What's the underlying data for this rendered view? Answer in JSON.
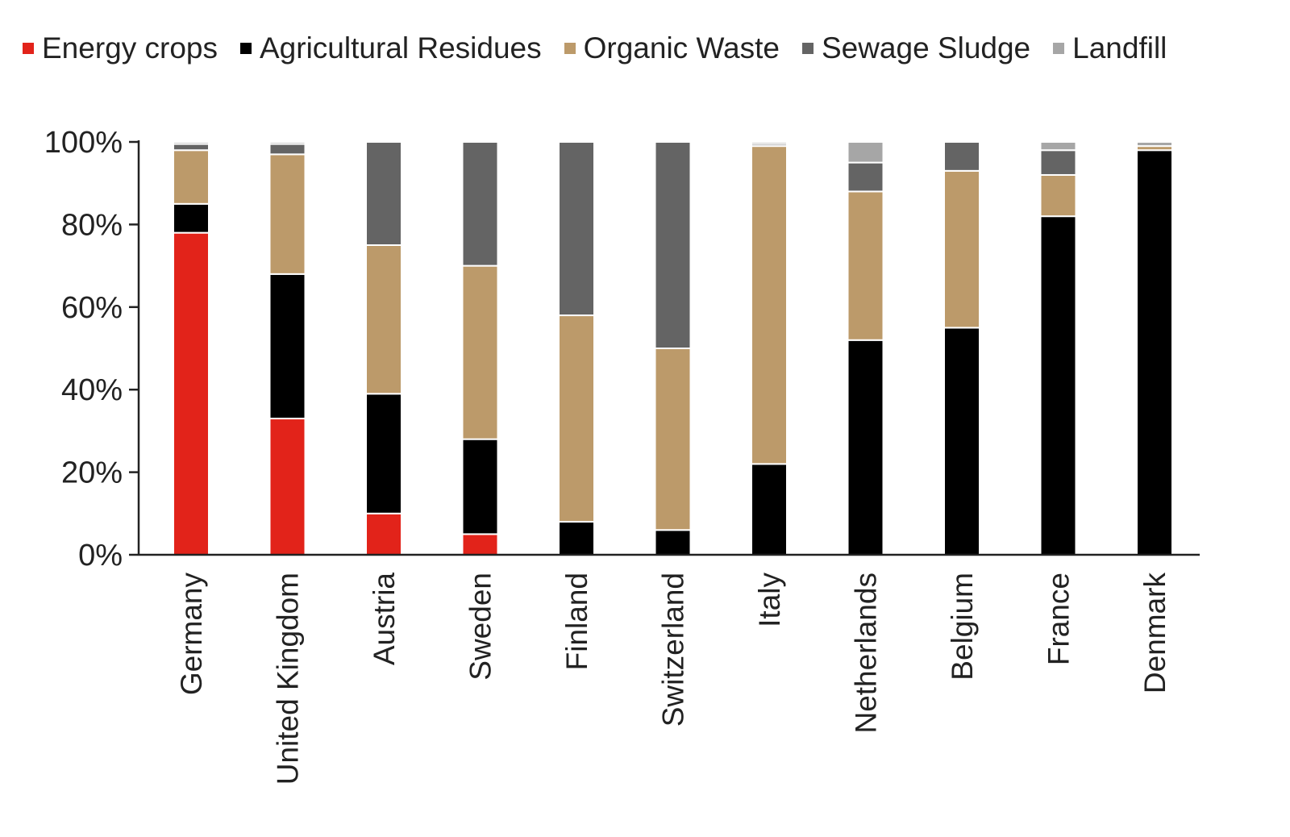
{
  "chart_data": {
    "type": "bar",
    "stacked": true,
    "normalized": true,
    "title": "",
    "xlabel": "",
    "ylabel": "",
    "ylim": [
      0,
      100
    ],
    "yticks": [
      "0%",
      "20%",
      "40%",
      "60%",
      "80%",
      "100%"
    ],
    "legend_position": "top",
    "grid": false,
    "categories": [
      "Germany",
      "United Kingdom",
      "Austria",
      "Sweden",
      "Finland",
      "Switzerland",
      "Italy",
      "Netherlands",
      "Belgium",
      "France",
      "Denmark"
    ],
    "series": [
      {
        "name": "Energy crops",
        "color": "#e2231a",
        "values": [
          78,
          33,
          10,
          5,
          0,
          0,
          0,
          0,
          0,
          0,
          0
        ]
      },
      {
        "name": "Agricultural Residues",
        "color": "#000000",
        "values": [
          7,
          35,
          29,
          23,
          8,
          6,
          22,
          52,
          55,
          82,
          98
        ]
      },
      {
        "name": "Organic Waste",
        "color": "#bc9a6a",
        "values": [
          13,
          29,
          36,
          42,
          50,
          44,
          77,
          36,
          38,
          10,
          1
        ]
      },
      {
        "name": "Sewage Sludge",
        "color": "#646464",
        "values": [
          1.5,
          2.5,
          25,
          30,
          42,
          50,
          0.5,
          7,
          7,
          6,
          0
        ]
      },
      {
        "name": "Landfill",
        "color": "#a6a6a6",
        "values": [
          0.5,
          0.5,
          0,
          0,
          0,
          0,
          0.5,
          5,
          0,
          2,
          1
        ]
      }
    ]
  }
}
